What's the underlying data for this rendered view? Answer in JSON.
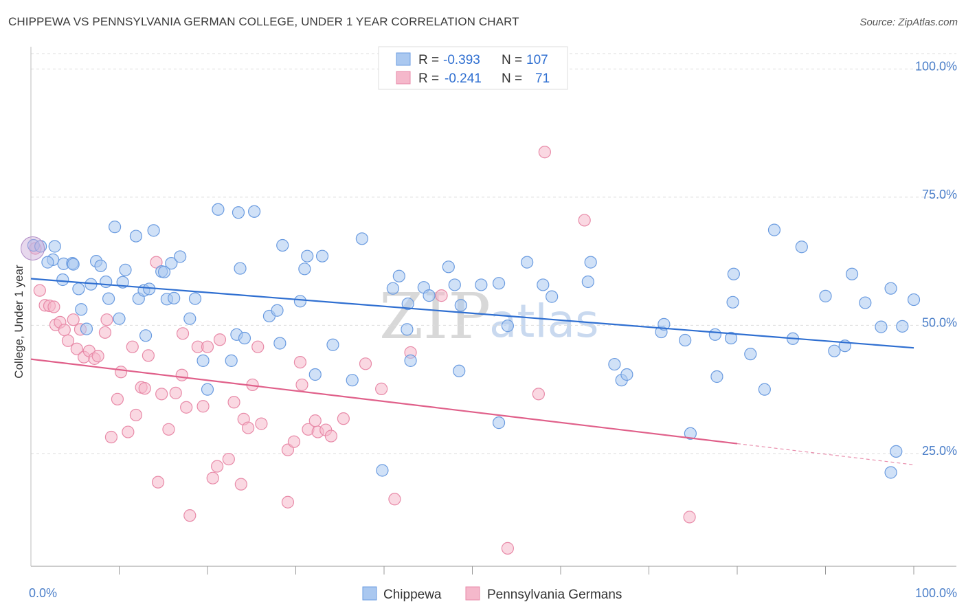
{
  "title": "CHIPPEWA VS PENNSYLVANIA GERMAN COLLEGE, UNDER 1 YEAR CORRELATION CHART",
  "source": "Source: ZipAtlas.com",
  "watermark": {
    "zip": "ZIP",
    "atlas": "atlas"
  },
  "colors": {
    "blue_fill": "#aac8f0",
    "blue_stroke": "#6a9be0",
    "blue_line": "#2f6fd1",
    "pink_fill": "#f5b8cb",
    "pink_stroke": "#e88aa8",
    "pink_line": "#e0608a",
    "axis_text": "#4a7ec9",
    "grid": "#dddddd"
  },
  "legend": {
    "rows": [
      {
        "r_label": "R =",
        "r_value": "-0.393",
        "n_label": "N =",
        "n_value": "107",
        "color": "#aac8f0"
      },
      {
        "r_label": "R =",
        "r_value": "-0.241",
        "n_label": "N =",
        "n_value": "71",
        "color": "#f5b8cb"
      }
    ]
  },
  "chart_data": {
    "type": "scatter",
    "title": "CHIPPEWA VS PENNSYLVANIA GERMAN COLLEGE, UNDER 1 YEAR CORRELATION CHART",
    "xlabel": "",
    "ylabel": "College, Under 1 year",
    "xlim": [
      0,
      100
    ],
    "ylim": [
      3,
      103
    ],
    "x_tick_labels": [
      "0.0%",
      "100.0%"
    ],
    "y_ticks": [
      25,
      50,
      75,
      100
    ],
    "y_tick_labels": [
      "25.0%",
      "50.0%",
      "75.0%",
      "100.0%"
    ],
    "grid": "horizontal dashed",
    "legend_position": "top-center",
    "series": [
      {
        "name": "Chippewa",
        "color": "#aac8f0",
        "trend": {
          "x": [
            0,
            100
          ],
          "y": [
            59.1,
            45.6
          ],
          "solid_to": 100
        },
        "points": [
          [
            0.3,
            65.6
          ],
          [
            1.1,
            65.4
          ],
          [
            2.5,
            62.8
          ],
          [
            1.9,
            62.3
          ],
          [
            2.7,
            65.4
          ],
          [
            3.6,
            58.9
          ],
          [
            3.7,
            62.0
          ],
          [
            4.7,
            62.1
          ],
          [
            4.8,
            61.9
          ],
          [
            5.4,
            57.1
          ],
          [
            5.7,
            53.1
          ],
          [
            6.3,
            49.3
          ],
          [
            6.8,
            58.0
          ],
          [
            7.4,
            62.5
          ],
          [
            7.9,
            61.6
          ],
          [
            8.5,
            58.5
          ],
          [
            8.8,
            55.2
          ],
          [
            9.5,
            69.2
          ],
          [
            10.0,
            51.3
          ],
          [
            10.4,
            58.4
          ],
          [
            10.7,
            60.8
          ],
          [
            11.9,
            67.4
          ],
          [
            12.2,
            55.2
          ],
          [
            12.8,
            56.8
          ],
          [
            13.0,
            48.0
          ],
          [
            13.4,
            57.1
          ],
          [
            13.9,
            68.5
          ],
          [
            14.8,
            60.5
          ],
          [
            15.1,
            60.4
          ],
          [
            15.4,
            55.1
          ],
          [
            15.9,
            62.1
          ],
          [
            16.2,
            55.3
          ],
          [
            16.9,
            63.4
          ],
          [
            18.0,
            51.3
          ],
          [
            18.6,
            55.2
          ],
          [
            19.5,
            43.1
          ],
          [
            20.0,
            37.5
          ],
          [
            21.2,
            72.6
          ],
          [
            22.7,
            43.1
          ],
          [
            23.3,
            48.2
          ],
          [
            23.5,
            72.0
          ],
          [
            23.7,
            61.1
          ],
          [
            24.2,
            47.5
          ],
          [
            25.3,
            72.2
          ],
          [
            27.0,
            51.8
          ],
          [
            27.9,
            52.9
          ],
          [
            28.2,
            46.5
          ],
          [
            28.5,
            65.6
          ],
          [
            30.5,
            54.7
          ],
          [
            31.0,
            61.0
          ],
          [
            31.3,
            63.5
          ],
          [
            32.2,
            40.4
          ],
          [
            33.0,
            63.5
          ],
          [
            34.2,
            46.2
          ],
          [
            36.4,
            39.3
          ],
          [
            37.5,
            66.9
          ],
          [
            39.8,
            21.7
          ],
          [
            41.0,
            57.2
          ],
          [
            41.7,
            59.6
          ],
          [
            42.6,
            49.2
          ],
          [
            42.7,
            54.2
          ],
          [
            43.0,
            43.1
          ],
          [
            44.5,
            57.4
          ],
          [
            45.1,
            55.8
          ],
          [
            47.3,
            61.4
          ],
          [
            48.0,
            57.9
          ],
          [
            48.5,
            41.1
          ],
          [
            48.7,
            53.9
          ],
          [
            51.0,
            57.9
          ],
          [
            53.0,
            31.0
          ],
          [
            53.0,
            58.2
          ],
          [
            54.0,
            49.9
          ],
          [
            56.2,
            62.3
          ],
          [
            58.0,
            57.9
          ],
          [
            59.0,
            55.6
          ],
          [
            63.1,
            58.5
          ],
          [
            63.4,
            62.3
          ],
          [
            66.1,
            42.4
          ],
          [
            66.9,
            39.3
          ],
          [
            67.5,
            40.4
          ],
          [
            71.4,
            48.7
          ],
          [
            71.7,
            50.2
          ],
          [
            74.1,
            47.1
          ],
          [
            74.7,
            28.9
          ],
          [
            77.5,
            48.2
          ],
          [
            77.7,
            40.0
          ],
          [
            79.3,
            47.5
          ],
          [
            79.5,
            54.5
          ],
          [
            79.6,
            60.0
          ],
          [
            81.5,
            44.4
          ],
          [
            83.1,
            37.5
          ],
          [
            84.2,
            68.6
          ],
          [
            86.3,
            47.4
          ],
          [
            87.3,
            65.3
          ],
          [
            90.0,
            55.7
          ],
          [
            91.0,
            45.0
          ],
          [
            92.2,
            46.0
          ],
          [
            93.0,
            60.0
          ],
          [
            94.5,
            54.4
          ],
          [
            96.3,
            49.7
          ],
          [
            97.4,
            57.2
          ],
          [
            97.4,
            21.3
          ],
          [
            98.0,
            25.4
          ],
          [
            98.7,
            49.8
          ],
          [
            100.0,
            55.0
          ]
        ]
      },
      {
        "name": "Pennsylvania Germans",
        "color": "#f5b8cb",
        "trend": {
          "x": [
            0,
            100
          ],
          "y": [
            43.4,
            22.8
          ],
          "solid_to": 80
        },
        "points": [
          [
            0.5,
            65.0
          ],
          [
            1.0,
            56.8
          ],
          [
            1.6,
            53.9
          ],
          [
            2.1,
            53.8
          ],
          [
            2.6,
            53.6
          ],
          [
            2.8,
            50.1
          ],
          [
            3.3,
            50.6
          ],
          [
            3.8,
            49.1
          ],
          [
            4.2,
            47.0
          ],
          [
            4.8,
            51.1
          ],
          [
            5.2,
            45.4
          ],
          [
            5.6,
            49.2
          ],
          [
            6.0,
            43.8
          ],
          [
            6.6,
            45.0
          ],
          [
            7.2,
            43.5
          ],
          [
            7.6,
            44.0
          ],
          [
            8.4,
            48.6
          ],
          [
            8.6,
            51.1
          ],
          [
            9.1,
            28.2
          ],
          [
            9.8,
            35.6
          ],
          [
            10.2,
            40.9
          ],
          [
            11.0,
            29.2
          ],
          [
            11.5,
            45.8
          ],
          [
            11.9,
            32.5
          ],
          [
            12.5,
            37.9
          ],
          [
            12.9,
            37.7
          ],
          [
            13.3,
            44.1
          ],
          [
            14.2,
            62.3
          ],
          [
            14.4,
            19.4
          ],
          [
            14.8,
            36.6
          ],
          [
            15.6,
            29.7
          ],
          [
            16.4,
            36.8
          ],
          [
            17.1,
            40.3
          ],
          [
            17.2,
            48.4
          ],
          [
            17.6,
            34.0
          ],
          [
            18.0,
            12.9
          ],
          [
            18.9,
            45.8
          ],
          [
            19.5,
            34.2
          ],
          [
            20.0,
            45.8
          ],
          [
            20.6,
            20.2
          ],
          [
            21.1,
            22.5
          ],
          [
            21.4,
            47.2
          ],
          [
            22.4,
            23.9
          ],
          [
            23.0,
            35.0
          ],
          [
            23.8,
            19.0
          ],
          [
            24.1,
            31.7
          ],
          [
            24.6,
            30.0
          ],
          [
            25.1,
            38.4
          ],
          [
            25.7,
            45.8
          ],
          [
            26.1,
            30.8
          ],
          [
            29.1,
            25.7
          ],
          [
            29.1,
            15.5
          ],
          [
            29.8,
            27.3
          ],
          [
            30.5,
            42.8
          ],
          [
            30.7,
            38.4
          ],
          [
            31.4,
            29.7
          ],
          [
            32.2,
            31.4
          ],
          [
            32.5,
            29.2
          ],
          [
            33.4,
            29.6
          ],
          [
            34.0,
            28.4
          ],
          [
            35.4,
            31.8
          ],
          [
            37.9,
            42.5
          ],
          [
            39.7,
            37.6
          ],
          [
            41.2,
            16.1
          ],
          [
            43.0,
            44.7
          ],
          [
            46.5,
            55.8
          ],
          [
            54.0,
            6.5
          ],
          [
            57.5,
            36.6
          ],
          [
            58.2,
            83.8
          ],
          [
            62.7,
            70.5
          ],
          [
            74.6,
            12.6
          ]
        ]
      }
    ]
  },
  "axis": {
    "ylabel": "College, Under 1 year",
    "x_left": "0.0%",
    "x_right": "100.0%"
  },
  "bottom_legend": [
    "Chippewa",
    "Pennsylvania Germans"
  ]
}
